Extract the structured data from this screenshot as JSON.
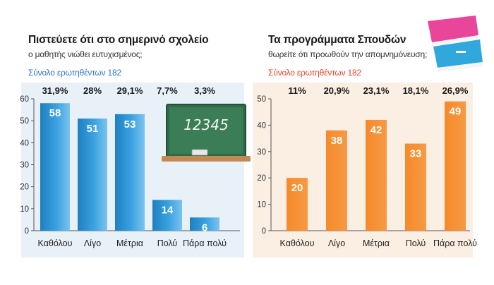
{
  "colors": {
    "left_bar": "#2f93d3",
    "left_bar_light": "#7cc3ee",
    "right_bar": "#f58a2a",
    "left_total": "#2f79c4",
    "right_total": "#e8452c",
    "panel_bg_left": "#e9f1f8",
    "panel_bg_right": "#fbefe4",
    "chalkboard": "#2f6b47"
  },
  "icons": {
    "left": "chalkboard-icon",
    "right": "books-icon"
  },
  "left": {
    "title": "Πιστεύετε ότι στο σημερινό σχολείο",
    "subtitle": "ο μαθητής νιώθει ευτυχισμένος;",
    "total": "Σύνολο ερωτηθέντων 182",
    "chalk_text": "12345"
  },
  "right": {
    "title": "Τα προγράμματα Σπουδών",
    "subtitle": "θωρείτε ότι προωθούν την απομνημόνευση;",
    "total": "Σύνολο ερωτηθέντων 182"
  },
  "chart_data": [
    {
      "type": "bar",
      "title": "Πιστεύετε ότι στο σημερινό σχολείο ο μαθητής νιώθει ευτυχισμένος;",
      "categories": [
        "Καθόλου",
        "Λίγο",
        "Μέτρια",
        "Πολύ",
        "Πάρα πολύ"
      ],
      "values": [
        58,
        51,
        53,
        14,
        6
      ],
      "value_labels": [
        "58",
        "51",
        "53",
        "14",
        "6"
      ],
      "percentages": [
        "31,9%",
        "28%",
        "29,1%",
        "7,7%",
        "3,3%"
      ],
      "yticks": [
        "0",
        "10",
        "20",
        "30",
        "40",
        "50",
        "60"
      ],
      "ylim": [
        0,
        60
      ],
      "grid": false
    },
    {
      "type": "bar",
      "title": "Τα προγράμματα Σπουδών θωρείτε ότι προωθούν την απομνημόνευση;",
      "categories": [
        "Καθόλου",
        "Λίγο",
        "Μέτρια",
        "Πολύ",
        "Πάρα πολύ"
      ],
      "values": [
        20,
        38,
        42,
        33,
        49
      ],
      "value_labels": [
        "20",
        "38",
        "42",
        "33",
        "49"
      ],
      "percentages": [
        "11%",
        "20,9%",
        "23,1%",
        "18,1%",
        "26,9%"
      ],
      "yticks": [
        "0",
        "10",
        "20",
        "30",
        "40",
        "50"
      ],
      "ylim": [
        0,
        50
      ],
      "grid": false
    }
  ]
}
